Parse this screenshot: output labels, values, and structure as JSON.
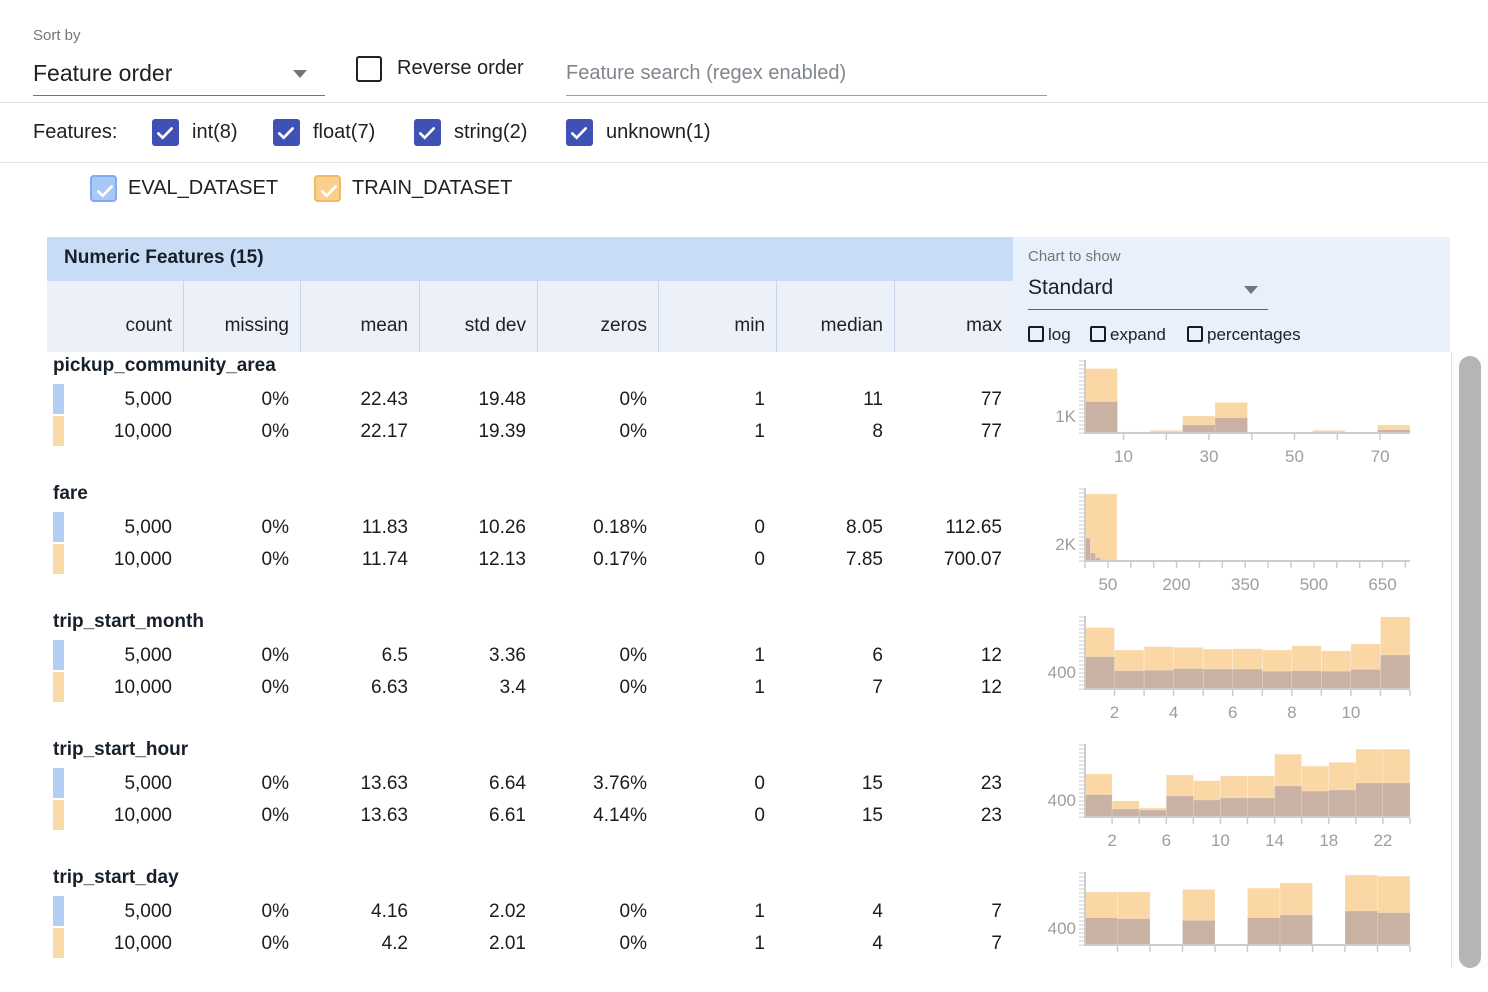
{
  "toolbar": {
    "sort_by_label": "Sort by",
    "sort_value": "Feature order",
    "reverse_label": "Reverse order",
    "search_placeholder": "Feature search (regex enabled)"
  },
  "filters": {
    "label": "Features:",
    "types": [
      {
        "label": "int(8)",
        "checked": true
      },
      {
        "label": "float(7)",
        "checked": true
      },
      {
        "label": "string(2)",
        "checked": true
      },
      {
        "label": "unknown(1)",
        "checked": true
      }
    ]
  },
  "datasets": [
    {
      "name": "EVAL_DATASET",
      "fill": "#a9c7f7",
      "border": "#7faaf5",
      "chip": "#b3cdf5"
    },
    {
      "name": "TRAIN_DATASET",
      "fill": "#fbd08f",
      "border": "#f0b965",
      "chip": "#f8d9a8"
    }
  ],
  "chart_panel": {
    "label": "Chart to show",
    "selected": "Standard",
    "options": [
      "log",
      "expand",
      "percentages"
    ]
  },
  "table": {
    "title": "Numeric Features (15)",
    "columns": [
      "count",
      "missing",
      "mean",
      "std dev",
      "zeros",
      "min",
      "median",
      "max"
    ],
    "features": [
      {
        "name": "pickup_community_area",
        "rows": [
          {
            "dataset": "eval",
            "values": [
              "5,000",
              "0%",
              "22.43",
              "19.48",
              "0%",
              "1",
              "11",
              "77"
            ]
          },
          {
            "dataset": "train",
            "values": [
              "10,000",
              "0%",
              "22.17",
              "19.39",
              "0%",
              "1",
              "8",
              "77"
            ]
          }
        ]
      },
      {
        "name": "fare",
        "rows": [
          {
            "dataset": "eval",
            "values": [
              "5,000",
              "0%",
              "11.83",
              "10.26",
              "0.18%",
              "0",
              "8.05",
              "112.65"
            ]
          },
          {
            "dataset": "train",
            "values": [
              "10,000",
              "0%",
              "11.74",
              "12.13",
              "0.17%",
              "0",
              "7.85",
              "700.07"
            ]
          }
        ]
      },
      {
        "name": "trip_start_month",
        "rows": [
          {
            "dataset": "eval",
            "values": [
              "5,000",
              "0%",
              "6.5",
              "3.36",
              "0%",
              "1",
              "6",
              "12"
            ]
          },
          {
            "dataset": "train",
            "values": [
              "10,000",
              "0%",
              "6.63",
              "3.4",
              "0%",
              "1",
              "7",
              "12"
            ]
          }
        ]
      },
      {
        "name": "trip_start_hour",
        "rows": [
          {
            "dataset": "eval",
            "values": [
              "5,000",
              "0%",
              "13.63",
              "6.64",
              "3.76%",
              "0",
              "15",
              "23"
            ]
          },
          {
            "dataset": "train",
            "values": [
              "10,000",
              "0%",
              "13.63",
              "6.61",
              "4.14%",
              "0",
              "15",
              "23"
            ]
          }
        ]
      },
      {
        "name": "trip_start_day",
        "rows": [
          {
            "dataset": "eval",
            "values": [
              "5,000",
              "0%",
              "4.16",
              "2.02",
              "0%",
              "1",
              "4",
              "7"
            ]
          },
          {
            "dataset": "train",
            "values": [
              "10,000",
              "0%",
              "4.2",
              "2.01",
              "0%",
              "1",
              "4",
              "7"
            ]
          }
        ]
      }
    ]
  },
  "chart_data": [
    {
      "type": "bar",
      "feature": "pickup_community_area",
      "ylabel": "1K",
      "ylabel_value": 1000,
      "ymax": 4300,
      "xmin": 1,
      "xmax": 77,
      "ticks": [
        10,
        20,
        30,
        40,
        50,
        60,
        70
      ],
      "xlabels": [
        {
          "v": 10,
          "label": "10"
        },
        {
          "v": 30,
          "label": "30"
        },
        {
          "v": 50,
          "label": "50"
        },
        {
          "v": 70,
          "label": "70"
        }
      ],
      "train": [
        [
          1,
          8.6,
          3800
        ],
        [
          8.6,
          16.2,
          70
        ],
        [
          16.2,
          23.8,
          160
        ],
        [
          23.8,
          31.4,
          1000
        ],
        [
          31.4,
          39,
          1800
        ],
        [
          39,
          46.6,
          40
        ],
        [
          46.6,
          54.2,
          40
        ],
        [
          54.2,
          61.8,
          160
        ],
        [
          61.8,
          69.4,
          30
        ],
        [
          69.4,
          77,
          480
        ]
      ],
      "eval": [
        [
          1,
          8.6,
          1850
        ],
        [
          8.6,
          16.2,
          30
        ],
        [
          16.2,
          23.8,
          60
        ],
        [
          23.8,
          31.4,
          480
        ],
        [
          31.4,
          39,
          900
        ],
        [
          39,
          46.6,
          15
        ],
        [
          46.6,
          54.2,
          15
        ],
        [
          54.2,
          61.8,
          50
        ],
        [
          61.8,
          69.4,
          10
        ],
        [
          69.4,
          77,
          190
        ]
      ]
    },
    {
      "type": "bar",
      "feature": "fare",
      "ylabel": "2K",
      "ylabel_value": 2000,
      "ymax": 8600,
      "xmin": 0,
      "xmax": 710,
      "ticks": [
        0,
        50,
        100,
        150,
        200,
        250,
        300,
        350,
        400,
        450,
        500,
        550,
        600,
        650,
        700
      ],
      "xlabels": [
        {
          "v": 50,
          "label": "50"
        },
        {
          "v": 200,
          "label": "200"
        },
        {
          "v": 350,
          "label": "350"
        },
        {
          "v": 500,
          "label": "500"
        },
        {
          "v": 650,
          "label": "650"
        }
      ],
      "train": [
        [
          0,
          70,
          7900
        ],
        [
          70,
          140,
          110
        ],
        [
          140,
          210,
          40
        ],
        [
          210,
          280,
          15
        ],
        [
          630,
          700,
          10
        ]
      ],
      "eval": [
        [
          0,
          11.3,
          2700
        ],
        [
          11.3,
          22.6,
          950
        ],
        [
          22.6,
          33.9,
          380
        ],
        [
          33.9,
          45.2,
          160
        ],
        [
          45.2,
          56.5,
          70
        ],
        [
          56.5,
          67.8,
          30
        ]
      ]
    },
    {
      "type": "bar",
      "feature": "trip_start_month",
      "ylabel": "400",
      "ylabel_value": 400,
      "ymax": 1720,
      "xmin": 1,
      "xmax": 12,
      "ticks": [
        2,
        3,
        4,
        5,
        6,
        7,
        8,
        9,
        10,
        11,
        12
      ],
      "xlabels": [
        {
          "v": 2,
          "label": "2"
        },
        {
          "v": 4,
          "label": "4"
        },
        {
          "v": 6,
          "label": "6"
        },
        {
          "v": 8,
          "label": "8"
        },
        {
          "v": 10,
          "label": "10"
        }
      ],
      "train": [
        [
          1,
          2,
          1450
        ],
        [
          2,
          3,
          920
        ],
        [
          3,
          4,
          1000
        ],
        [
          4,
          5,
          980
        ],
        [
          5,
          6,
          940
        ],
        [
          6,
          7,
          950
        ],
        [
          7,
          8,
          920
        ],
        [
          8,
          9,
          1020
        ],
        [
          9,
          10,
          900
        ],
        [
          10,
          11,
          1060
        ],
        [
          11,
          12,
          1700
        ]
      ],
      "eval": [
        [
          1,
          2,
          760
        ],
        [
          2,
          3,
          430
        ],
        [
          3,
          4,
          440
        ],
        [
          4,
          5,
          480
        ],
        [
          5,
          6,
          470
        ],
        [
          6,
          7,
          470
        ],
        [
          7,
          8,
          420
        ],
        [
          8,
          9,
          430
        ],
        [
          9,
          10,
          420
        ],
        [
          10,
          11,
          460
        ],
        [
          11,
          12,
          800
        ]
      ]
    },
    {
      "type": "bar",
      "feature": "trip_start_hour",
      "ylabel": "400",
      "ylabel_value": 400,
      "ymax": 1720,
      "xmin": 0,
      "xmax": 24,
      "ticks": [
        2,
        4,
        6,
        8,
        10,
        12,
        14,
        16,
        18,
        20,
        22,
        24
      ],
      "xlabels": [
        {
          "v": 2,
          "label": "2"
        },
        {
          "v": 6,
          "label": "6"
        },
        {
          "v": 10,
          "label": "10"
        },
        {
          "v": 14,
          "label": "14"
        },
        {
          "v": 18,
          "label": "18"
        },
        {
          "v": 22,
          "label": "22"
        }
      ],
      "train": [
        [
          0,
          2,
          1015
        ],
        [
          2,
          4,
          380
        ],
        [
          4,
          6,
          215
        ],
        [
          6,
          8,
          990
        ],
        [
          8,
          10,
          855
        ],
        [
          10,
          12,
          970
        ],
        [
          12,
          14,
          970
        ],
        [
          14,
          16,
          1480
        ],
        [
          16,
          18,
          1200
        ],
        [
          18,
          20,
          1290
        ],
        [
          20,
          22,
          1600
        ],
        [
          22,
          24,
          1600
        ]
      ],
      "eval": [
        [
          0,
          2,
          525
        ],
        [
          2,
          4,
          190
        ],
        [
          4,
          6,
          165
        ],
        [
          6,
          8,
          495
        ],
        [
          8,
          10,
          400
        ],
        [
          10,
          12,
          450
        ],
        [
          12,
          14,
          450
        ],
        [
          14,
          16,
          730
        ],
        [
          16,
          18,
          610
        ],
        [
          18,
          20,
          635
        ],
        [
          20,
          22,
          800
        ],
        [
          22,
          24,
          800
        ]
      ]
    },
    {
      "type": "bar",
      "feature": "trip_start_day",
      "ylabel": "400",
      "ylabel_value": 400,
      "ymax": 1720,
      "xmin": 1,
      "xmax": 7,
      "ticks": [
        1.6,
        2.2,
        2.8,
        3.4,
        4.0,
        4.6,
        5.2,
        5.8,
        6.4,
        7.0
      ],
      "xlabels": [],
      "train": [
        [
          1,
          1.6,
          1250
        ],
        [
          1.6,
          2.2,
          1250
        ],
        [
          2.8,
          3.4,
          1310
        ],
        [
          4,
          4.6,
          1340
        ],
        [
          4.6,
          5.2,
          1460
        ],
        [
          5.8,
          6.4,
          1650
        ],
        [
          6.4,
          7,
          1620
        ]
      ],
      "eval": [
        [
          1,
          1.6,
          640
        ],
        [
          1.6,
          2.2,
          620
        ],
        [
          2.8,
          3.4,
          580
        ],
        [
          4,
          4.6,
          640
        ],
        [
          4.6,
          5.2,
          710
        ],
        [
          5.8,
          6.4,
          800
        ],
        [
          6.4,
          7,
          760
        ]
      ]
    }
  ],
  "colors": {
    "accent_indigo": "#3f51b5",
    "eval_blue": "#a9c7f7",
    "train_orange": "#fbd08f",
    "hist_train": "#fad7a5",
    "hist_overlap": "#c9b2a3",
    "table_header_bg": "#c8dcf5",
    "col_header_bg": "#ecf1f9",
    "panel_bg": "#e8f0fc",
    "axis_gray": "#cccccc",
    "tick_label_gray": "#9e9e9e"
  }
}
